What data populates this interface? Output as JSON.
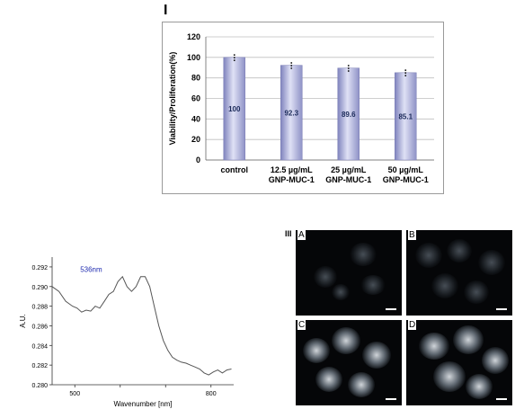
{
  "panels": {
    "bar_label": "I",
    "micro_label": "III",
    "micro_letters": [
      "A",
      "B",
      "C",
      "D"
    ]
  },
  "chart_data": [
    {
      "type": "bar",
      "categories": [
        "control",
        "12.5 µg/mL\nGNP-MUC-1",
        "25 µg/mL\nGNP-MUC-1",
        "50 µg/mL\nGNP-MUC-1"
      ],
      "values": [
        100,
        92.3,
        89.6,
        85.1
      ],
      "value_labels": [
        "100",
        "92.3",
        "89.6",
        "85.1"
      ],
      "error": [
        3,
        3,
        3,
        3
      ],
      "ylabel": "Viability/Proliferation(%)",
      "xlabel": "",
      "ylim": [
        0,
        120
      ],
      "yticks": [
        0,
        20,
        40,
        60,
        80,
        100,
        120
      ],
      "grid": true,
      "legend": "none"
    },
    {
      "type": "line",
      "xlabel": "Wavenumber [nm]",
      "ylabel": "A.U.",
      "xlim": [
        450,
        850
      ],
      "ylim": [
        0.28,
        0.293
      ],
      "xticks": [
        500,
        600,
        700,
        800
      ],
      "xtick_labels": [
        "500",
        "",
        "",
        "800"
      ],
      "yticks": [
        0.28,
        0.282,
        0.284,
        0.286,
        0.288,
        0.29,
        0.292
      ],
      "ytick_labels": [
        "0.280",
        "0.282",
        "0.284",
        "0.286",
        "0.288",
        "0.290",
        "0.292"
      ],
      "annotation": {
        "text": "536nm",
        "x": 536,
        "y": 0.2913
      },
      "series": [
        {
          "x": [
            450,
            465,
            480,
            495,
            505,
            515,
            525,
            535,
            545,
            555,
            565,
            575,
            585,
            595,
            605,
            615,
            625,
            635,
            645,
            655,
            665,
            675,
            685,
            695,
            705,
            715,
            725,
            735,
            745,
            755,
            765,
            775,
            785,
            795,
            805,
            815,
            825,
            835,
            845
          ],
          "y": [
            0.29,
            0.2895,
            0.2885,
            0.288,
            0.2878,
            0.2874,
            0.2876,
            0.2875,
            0.288,
            0.2878,
            0.2885,
            0.2892,
            0.2895,
            0.2905,
            0.291,
            0.29,
            0.2895,
            0.29,
            0.291,
            0.291,
            0.29,
            0.288,
            0.286,
            0.2845,
            0.2835,
            0.2828,
            0.2825,
            0.2823,
            0.2822,
            0.282,
            0.2818,
            0.2816,
            0.2812,
            0.281,
            0.2813,
            0.2815,
            0.2812,
            0.2815,
            0.2816
          ],
          "color": "#555555"
        }
      ],
      "grid": false,
      "legend": "none"
    }
  ],
  "colors": {
    "bar_fill_light": "#d9dcf2",
    "bar_fill_dark": "#8f92c7",
    "value_label": "#1b2a5a",
    "annotation": "#1f2bb0",
    "grid": "#bfbfbf"
  }
}
